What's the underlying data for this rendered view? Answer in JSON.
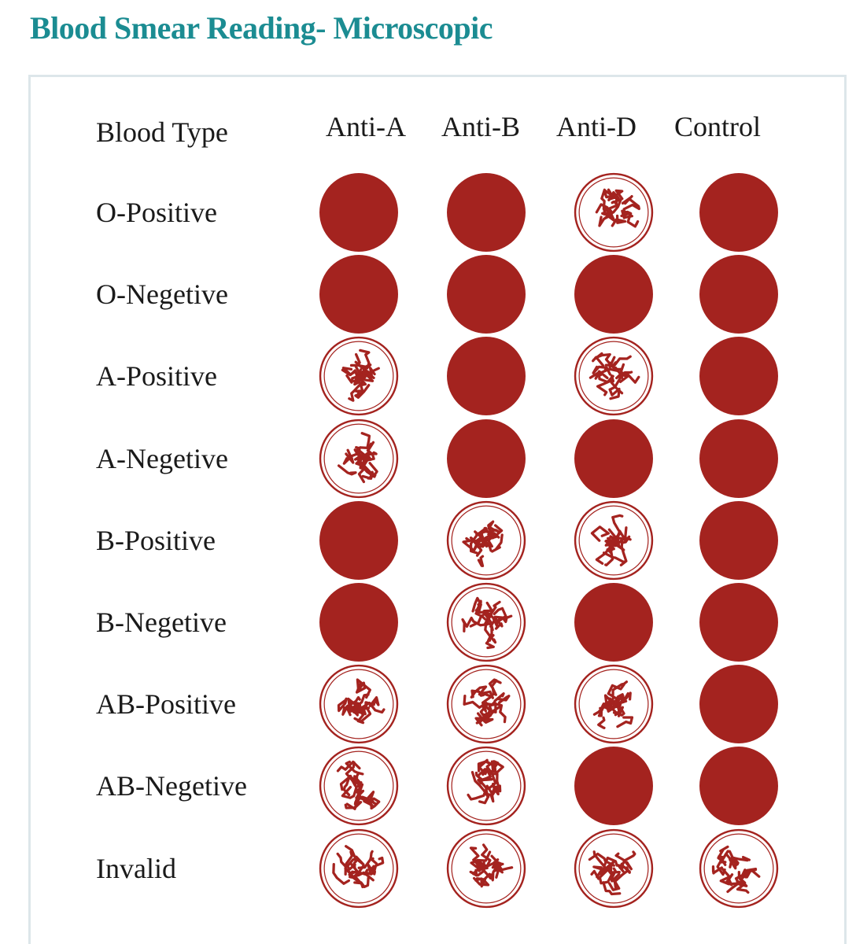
{
  "title": "Blood Smear Reading- Microscopic",
  "header": {
    "row_header": "Blood Type",
    "columns": [
      "Anti-A",
      "Anti-B",
      "Anti-D",
      "Control"
    ]
  },
  "legend_states": {
    "smooth": "no agglutination (solid red drop)",
    "clumped": "agglutination (clumped cells)"
  },
  "colors": {
    "title": "#1b8c92",
    "blood": "#a4231f",
    "panel_border": "#dde6ea",
    "text": "#1a1a1a"
  },
  "rows": [
    {
      "label": "O-Positive",
      "cells": [
        "smooth",
        "smooth",
        "clumped",
        "smooth"
      ]
    },
    {
      "label": "O-Negetive",
      "cells": [
        "smooth",
        "smooth",
        "smooth",
        "smooth"
      ]
    },
    {
      "label": "A-Positive",
      "cells": [
        "clumped",
        "smooth",
        "clumped",
        "smooth"
      ]
    },
    {
      "label": "A-Negetive",
      "cells": [
        "clumped",
        "smooth",
        "smooth",
        "smooth"
      ]
    },
    {
      "label": "B-Positive",
      "cells": [
        "smooth",
        "clumped",
        "clumped",
        "smooth"
      ]
    },
    {
      "label": "B-Negetive",
      "cells": [
        "smooth",
        "clumped",
        "smooth",
        "smooth"
      ]
    },
    {
      "label": "AB-Positive",
      "cells": [
        "clumped",
        "clumped",
        "clumped",
        "smooth"
      ]
    },
    {
      "label": "AB-Negetive",
      "cells": [
        "clumped",
        "clumped",
        "smooth",
        "smooth"
      ]
    },
    {
      "label": "Invalid",
      "cells": [
        "clumped",
        "clumped",
        "clumped",
        "clumped"
      ]
    }
  ]
}
